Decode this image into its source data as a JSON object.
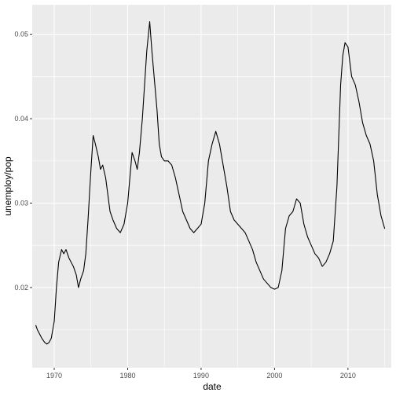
{
  "chart_data": {
    "type": "line",
    "title": "",
    "xlabel": "date",
    "ylabel": "unemploy/pop",
    "xlim": [
      1967,
      2015.9
    ],
    "ylim": [
      0.0105,
      0.0535
    ],
    "x_ticks": [
      1970,
      1980,
      1990,
      2000,
      2010
    ],
    "x_tick_labels": [
      "1970",
      "1980",
      "1990",
      "2000",
      "2010"
    ],
    "y_ticks": [
      0.02,
      0.03,
      0.04,
      0.05
    ],
    "y_tick_labels": [
      "0.02",
      "0.03",
      "0.04",
      "0.05"
    ],
    "grid": true,
    "background": "#EBEBEB",
    "grid_color": "#FFFFFF",
    "line_color": "#000000",
    "series": [
      {
        "x": [
          1967.5,
          1967.7,
          1968.0,
          1968.3,
          1968.7,
          1969.0,
          1969.3,
          1969.6,
          1970.0,
          1970.3,
          1970.6,
          1971.0,
          1971.3,
          1971.6,
          1972.0,
          1972.3,
          1972.6,
          1973.0,
          1973.3,
          1973.6,
          1974.0,
          1974.3,
          1974.6,
          1975.0,
          1975.3,
          1975.6,
          1976.0,
          1976.3,
          1976.6,
          1977.0,
          1977.3,
          1977.6,
          1978.0,
          1978.5,
          1979.0,
          1979.5,
          1980.0,
          1980.3,
          1980.6,
          1981.0,
          1981.3,
          1981.6,
          1982.0,
          1982.3,
          1982.6,
          1983.0,
          1983.3,
          1983.6,
          1984.0,
          1984.3,
          1984.6,
          1985.0,
          1985.5,
          1986.0,
          1986.5,
          1987.0,
          1987.5,
          1988.0,
          1988.5,
          1989.0,
          1989.5,
          1990.0,
          1990.5,
          1991.0,
          1991.5,
          1992.0,
          1992.5,
          1993.0,
          1993.5,
          1994.0,
          1994.5,
          1995.0,
          1995.5,
          1996.0,
          1996.5,
          1997.0,
          1997.5,
          1998.0,
          1998.5,
          1999.0,
          1999.5,
          2000.0,
          2000.5,
          2001.0,
          2001.5,
          2002.0,
          2002.5,
          2003.0,
          2003.5,
          2004.0,
          2004.5,
          2005.0,
          2005.5,
          2006.0,
          2006.5,
          2007.0,
          2007.5,
          2008.0,
          2008.5,
          2009.0,
          2009.3,
          2009.6,
          2010.0,
          2010.5,
          2011.0,
          2011.5,
          2012.0,
          2012.5,
          2013.0,
          2013.5,
          2014.0,
          2014.5,
          2015.0
        ],
        "values": [
          0.0155,
          0.015,
          0.0145,
          0.014,
          0.0135,
          0.0133,
          0.0135,
          0.014,
          0.016,
          0.02,
          0.023,
          0.0245,
          0.024,
          0.0245,
          0.0235,
          0.023,
          0.0225,
          0.0215,
          0.02,
          0.021,
          0.022,
          0.024,
          0.028,
          0.034,
          0.038,
          0.037,
          0.0355,
          0.034,
          0.0345,
          0.033,
          0.031,
          0.029,
          0.028,
          0.027,
          0.0265,
          0.0275,
          0.03,
          0.033,
          0.036,
          0.035,
          0.034,
          0.036,
          0.04,
          0.044,
          0.048,
          0.0515,
          0.048,
          0.045,
          0.041,
          0.037,
          0.0355,
          0.035,
          0.035,
          0.0345,
          0.033,
          0.031,
          0.029,
          0.028,
          0.027,
          0.0265,
          0.027,
          0.0275,
          0.03,
          0.035,
          0.037,
          0.0385,
          0.037,
          0.0345,
          0.032,
          0.029,
          0.028,
          0.0275,
          0.027,
          0.0265,
          0.0255,
          0.0245,
          0.023,
          0.022,
          0.021,
          0.0205,
          0.02,
          0.0198,
          0.02,
          0.022,
          0.027,
          0.0285,
          0.029,
          0.0305,
          0.03,
          0.0275,
          0.026,
          0.025,
          0.024,
          0.0235,
          0.0225,
          0.023,
          0.024,
          0.0255,
          0.032,
          0.044,
          0.0475,
          0.049,
          0.0485,
          0.045,
          0.044,
          0.042,
          0.0395,
          0.038,
          0.037,
          0.035,
          0.031,
          0.0285,
          0.027
        ]
      }
    ]
  }
}
